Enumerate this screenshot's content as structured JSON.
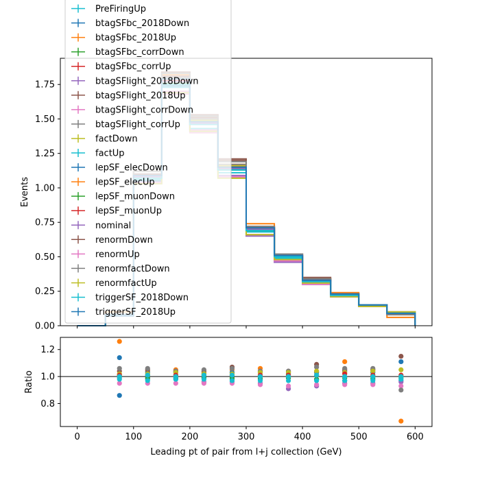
{
  "chart_data": [
    {
      "type": "line",
      "drawstyle": "steps",
      "xlabel": "",
      "ylabel": "Events",
      "xlim": [
        -30,
        630
      ],
      "ylim": [
        0,
        1.94
      ],
      "x_ticks": [
        "0",
        "100",
        "200",
        "300",
        "400",
        "500",
        "600"
      ],
      "y_ticks": [
        "0.00",
        "0.25",
        "0.50",
        "0.75",
        "1.00",
        "1.25",
        "1.50",
        "1.75"
      ],
      "bin_edges": [
        0,
        50,
        100,
        150,
        200,
        250,
        300,
        350,
        400,
        450,
        500,
        550,
        600
      ],
      "legend_position": "upper-left",
      "series": [
        {
          "name": "PreFiringUp",
          "color": "#17becf",
          "values": [
            0.0,
            0.08,
            1.1,
            1.78,
            1.48,
            1.15,
            0.7,
            0.5,
            0.33,
            0.22,
            0.15,
            0.09
          ]
        },
        {
          "name": "btagSFbc_2018Down",
          "color": "#1f77b4",
          "values": [
            0.0,
            0.07,
            1.05,
            1.74,
            1.46,
            1.13,
            0.69,
            0.5,
            0.32,
            0.22,
            0.14,
            0.09
          ]
        },
        {
          "name": "btagSFbc_2018Up",
          "color": "#ff7f0e",
          "values": [
            0.0,
            0.1,
            1.12,
            1.82,
            1.5,
            1.17,
            0.74,
            0.51,
            0.33,
            0.24,
            0.15,
            0.06
          ]
        },
        {
          "name": "btagSFbc_corrDown",
          "color": "#2ca02c",
          "values": [
            0.0,
            0.08,
            1.08,
            1.76,
            1.47,
            1.14,
            0.7,
            0.5,
            0.33,
            0.22,
            0.15,
            0.09
          ]
        },
        {
          "name": "btagSFbc_corrUp",
          "color": "#d62728",
          "values": [
            0.0,
            0.08,
            1.09,
            1.8,
            1.5,
            1.16,
            0.71,
            0.51,
            0.33,
            0.23,
            0.15,
            0.09
          ]
        },
        {
          "name": "btagSFlight_2018Down",
          "color": "#9467bd",
          "values": [
            0.0,
            0.08,
            1.07,
            1.73,
            1.41,
            1.09,
            0.65,
            0.46,
            0.3,
            0.21,
            0.14,
            0.08
          ]
        },
        {
          "name": "btagSFlight_2018Up",
          "color": "#8c564b",
          "values": [
            0.0,
            0.08,
            1.1,
            1.81,
            1.51,
            1.21,
            0.7,
            0.52,
            0.35,
            0.23,
            0.15,
            0.1
          ]
        },
        {
          "name": "btagSFlight_corrDown",
          "color": "#e377c2",
          "values": [
            0.0,
            0.08,
            1.03,
            1.7,
            1.42,
            1.08,
            0.66,
            0.47,
            0.3,
            0.21,
            0.14,
            0.09
          ]
        },
        {
          "name": "btagSFlight_corrUp",
          "color": "#7f7f7f",
          "values": [
            0.0,
            0.08,
            1.09,
            1.8,
            1.5,
            1.17,
            0.7,
            0.51,
            0.34,
            0.23,
            0.15,
            0.08
          ]
        },
        {
          "name": "factDown",
          "color": "#bcbd22",
          "values": [
            0.0,
            0.08,
            1.08,
            1.79,
            1.49,
            1.16,
            0.71,
            0.51,
            0.34,
            0.23,
            0.15,
            0.09
          ]
        },
        {
          "name": "factUp",
          "color": "#17becf",
          "values": [
            0.0,
            0.08,
            1.06,
            1.73,
            1.43,
            1.11,
            0.68,
            0.49,
            0.32,
            0.22,
            0.14,
            0.09
          ]
        },
        {
          "name": "lepSF_elecDown",
          "color": "#1f77b4",
          "values": [
            0.0,
            0.08,
            1.07,
            1.75,
            1.46,
            1.13,
            0.69,
            0.5,
            0.32,
            0.22,
            0.15,
            0.09
          ]
        },
        {
          "name": "lepSF_elecUp",
          "color": "#ff7f0e",
          "values": [
            0.0,
            0.08,
            1.09,
            1.78,
            1.48,
            1.15,
            0.71,
            0.5,
            0.33,
            0.23,
            0.15,
            0.09
          ]
        },
        {
          "name": "lepSF_muonDown",
          "color": "#2ca02c",
          "values": [
            0.0,
            0.08,
            1.07,
            1.75,
            1.46,
            1.13,
            0.69,
            0.5,
            0.32,
            0.22,
            0.15,
            0.09
          ]
        },
        {
          "name": "lepSF_muonUp",
          "color": "#d62728",
          "values": [
            0.0,
            0.08,
            1.09,
            1.78,
            1.48,
            1.15,
            0.71,
            0.51,
            0.33,
            0.23,
            0.15,
            0.09
          ]
        },
        {
          "name": "nominal",
          "color": "#9467bd",
          "values": [
            0.0,
            0.08,
            1.08,
            1.77,
            1.47,
            1.14,
            0.7,
            0.5,
            0.33,
            0.22,
            0.15,
            0.09
          ]
        },
        {
          "name": "renormDown",
          "color": "#8c564b",
          "values": [
            0.0,
            0.08,
            1.12,
            1.84,
            1.53,
            1.2,
            0.72,
            0.52,
            0.34,
            0.23,
            0.15,
            0.1
          ]
        },
        {
          "name": "renormUp",
          "color": "#e377c2",
          "values": [
            0.0,
            0.08,
            1.04,
            1.68,
            1.4,
            1.08,
            0.66,
            0.48,
            0.31,
            0.21,
            0.14,
            0.09
          ]
        },
        {
          "name": "renormfactDown",
          "color": "#7f7f7f",
          "values": [
            0.0,
            0.08,
            1.12,
            1.83,
            1.52,
            1.19,
            0.72,
            0.52,
            0.34,
            0.23,
            0.15,
            0.08
          ]
        },
        {
          "name": "renormfactUp",
          "color": "#bcbd22",
          "values": [
            0.0,
            0.08,
            1.03,
            1.69,
            1.41,
            1.07,
            0.66,
            0.48,
            0.31,
            0.21,
            0.14,
            0.1
          ]
        },
        {
          "name": "triggerSF_2018Down",
          "color": "#17becf",
          "values": [
            0.0,
            0.08,
            1.07,
            1.75,
            1.46,
            1.13,
            0.69,
            0.5,
            0.32,
            0.22,
            0.15,
            0.09
          ]
        },
        {
          "name": "triggerSF_2018Up",
          "color": "#1f77b4",
          "values": [
            0.0,
            0.08,
            1.09,
            1.79,
            1.48,
            1.15,
            0.71,
            0.51,
            0.33,
            0.23,
            0.15,
            0.09
          ]
        }
      ]
    },
    {
      "type": "scatter",
      "xlabel": "Leading pt of pair from l+j collection (GeV)",
      "ylabel": "Ratio",
      "xlim": [
        -30,
        630
      ],
      "ylim": [
        0.63,
        1.29
      ],
      "reference_line": 1.0,
      "x_ticks": [
        "0",
        "100",
        "200",
        "300",
        "400",
        "500",
        "600"
      ],
      "y_ticks": [
        "0.8",
        "1.0",
        "1.2"
      ],
      "x": [
        75,
        125,
        175,
        225,
        275,
        325,
        375,
        425,
        475,
        525,
        575
      ],
      "series": [
        {
          "color": "#ff7f0e",
          "values": [
            1.26,
            1.04,
            1.05,
            1.03,
            1.05,
            1.06,
            1.03,
            1.04,
            1.11,
            1.05,
            0.67
          ]
        },
        {
          "color": "#1f77b4",
          "values": [
            1.14,
            1.03,
            1.03,
            1.02,
            1.03,
            1.03,
            1.02,
            1.03,
            1.04,
            1.03,
            1.11
          ]
        },
        {
          "color": "#1f77b4",
          "values": [
            0.86,
            0.98,
            0.98,
            0.99,
            0.98,
            0.98,
            0.99,
            0.98,
            0.97,
            0.98,
            0.97
          ]
        },
        {
          "color": "#8c564b",
          "values": [
            1.04,
            1.05,
            1.04,
            1.04,
            1.07,
            1.04,
            1.04,
            1.09,
            1.05,
            1.05,
            1.15
          ]
        },
        {
          "color": "#9467bd",
          "values": [
            0.99,
            0.99,
            0.99,
            0.96,
            0.96,
            0.95,
            0.91,
            0.93,
            0.95,
            0.95,
            0.96
          ]
        },
        {
          "color": "#e377c2",
          "values": [
            0.95,
            0.95,
            0.95,
            0.95,
            0.95,
            0.94,
            0.93,
            0.94,
            0.94,
            0.94,
            0.93
          ]
        },
        {
          "color": "#7f7f7f",
          "values": [
            1.06,
            1.06,
            1.04,
            1.05,
            1.06,
            1.04,
            1.04,
            1.07,
            1.06,
            1.06,
            0.9
          ]
        },
        {
          "color": "#bcbd22",
          "values": [
            1.02,
            1.02,
            1.03,
            1.02,
            1.02,
            1.03,
            1.03,
            1.04,
            1.03,
            1.04,
            1.05
          ]
        },
        {
          "color": "#2ca02c",
          "values": [
            1.0,
            0.99,
            0.99,
            0.99,
            0.99,
            0.99,
            0.99,
            0.98,
            0.99,
            0.99,
            0.99
          ]
        },
        {
          "color": "#d62728",
          "values": [
            1.01,
            1.01,
            1.01,
            1.01,
            1.01,
            1.01,
            1.01,
            1.01,
            1.02,
            1.01,
            1.01
          ]
        },
        {
          "color": "#17becf",
          "values": [
            0.98,
            0.97,
            0.98,
            0.98,
            0.97,
            0.97,
            0.97,
            0.97,
            0.97,
            0.97,
            0.98
          ]
        },
        {
          "color": "#17becf",
          "values": [
            1.0,
            1.01,
            1.0,
            1.01,
            1.01,
            1.0,
            1.0,
            1.01,
            1.0,
            1.0,
            1.0
          ]
        }
      ]
    }
  ]
}
